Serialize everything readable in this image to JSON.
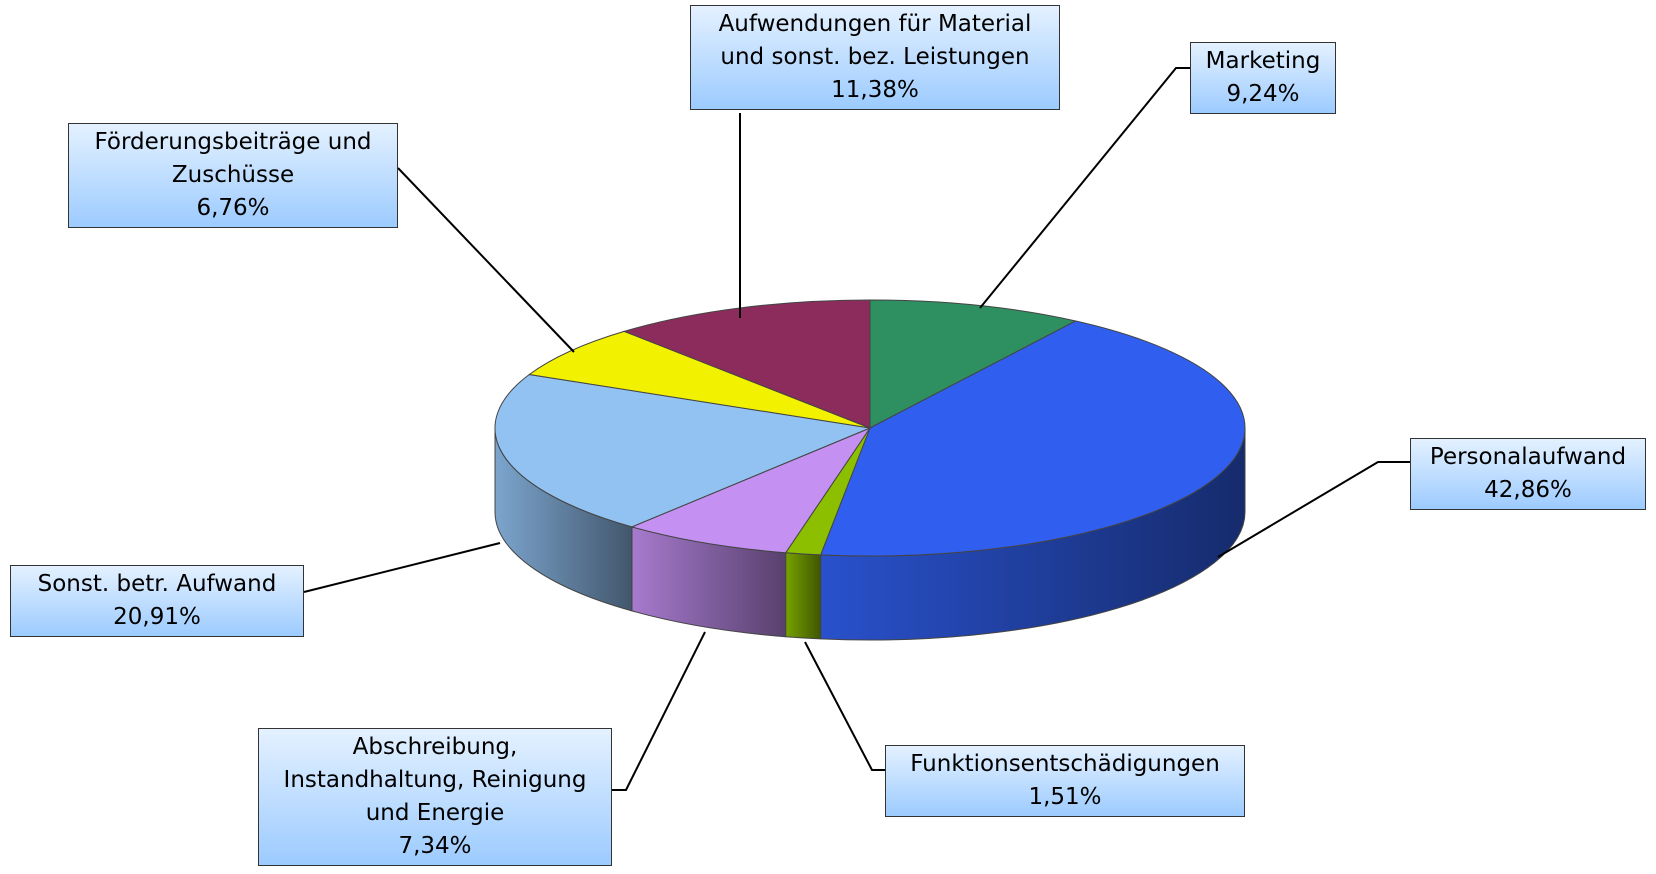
{
  "chart_data": {
    "type": "pie",
    "categories": [
      "Marketing",
      "Personalaufwand",
      "Funktionsentschädigungen",
      "Abschreibung,\nInstandhaltung, Reinigung\nund Energie",
      "Sonst. betr. Aufwand",
      "Förderungsbeiträge und\nZuschüsse",
      "Aufwendungen für Material\nund sonst. bez. Leistungen"
    ],
    "values": [
      9.24,
      42.86,
      1.51,
      7.34,
      20.91,
      6.76,
      11.38
    ],
    "value_labels": [
      "9,24%",
      "42,86%",
      "1,51%",
      "7,34%",
      "20,91%",
      "6,76%",
      "11,38%"
    ],
    "colors": [
      "#2e8f60",
      "#305ff0",
      "#8cbf00",
      "#c490f2",
      "#92c2f2",
      "#f2f200",
      "#8c2c5c"
    ]
  }
}
